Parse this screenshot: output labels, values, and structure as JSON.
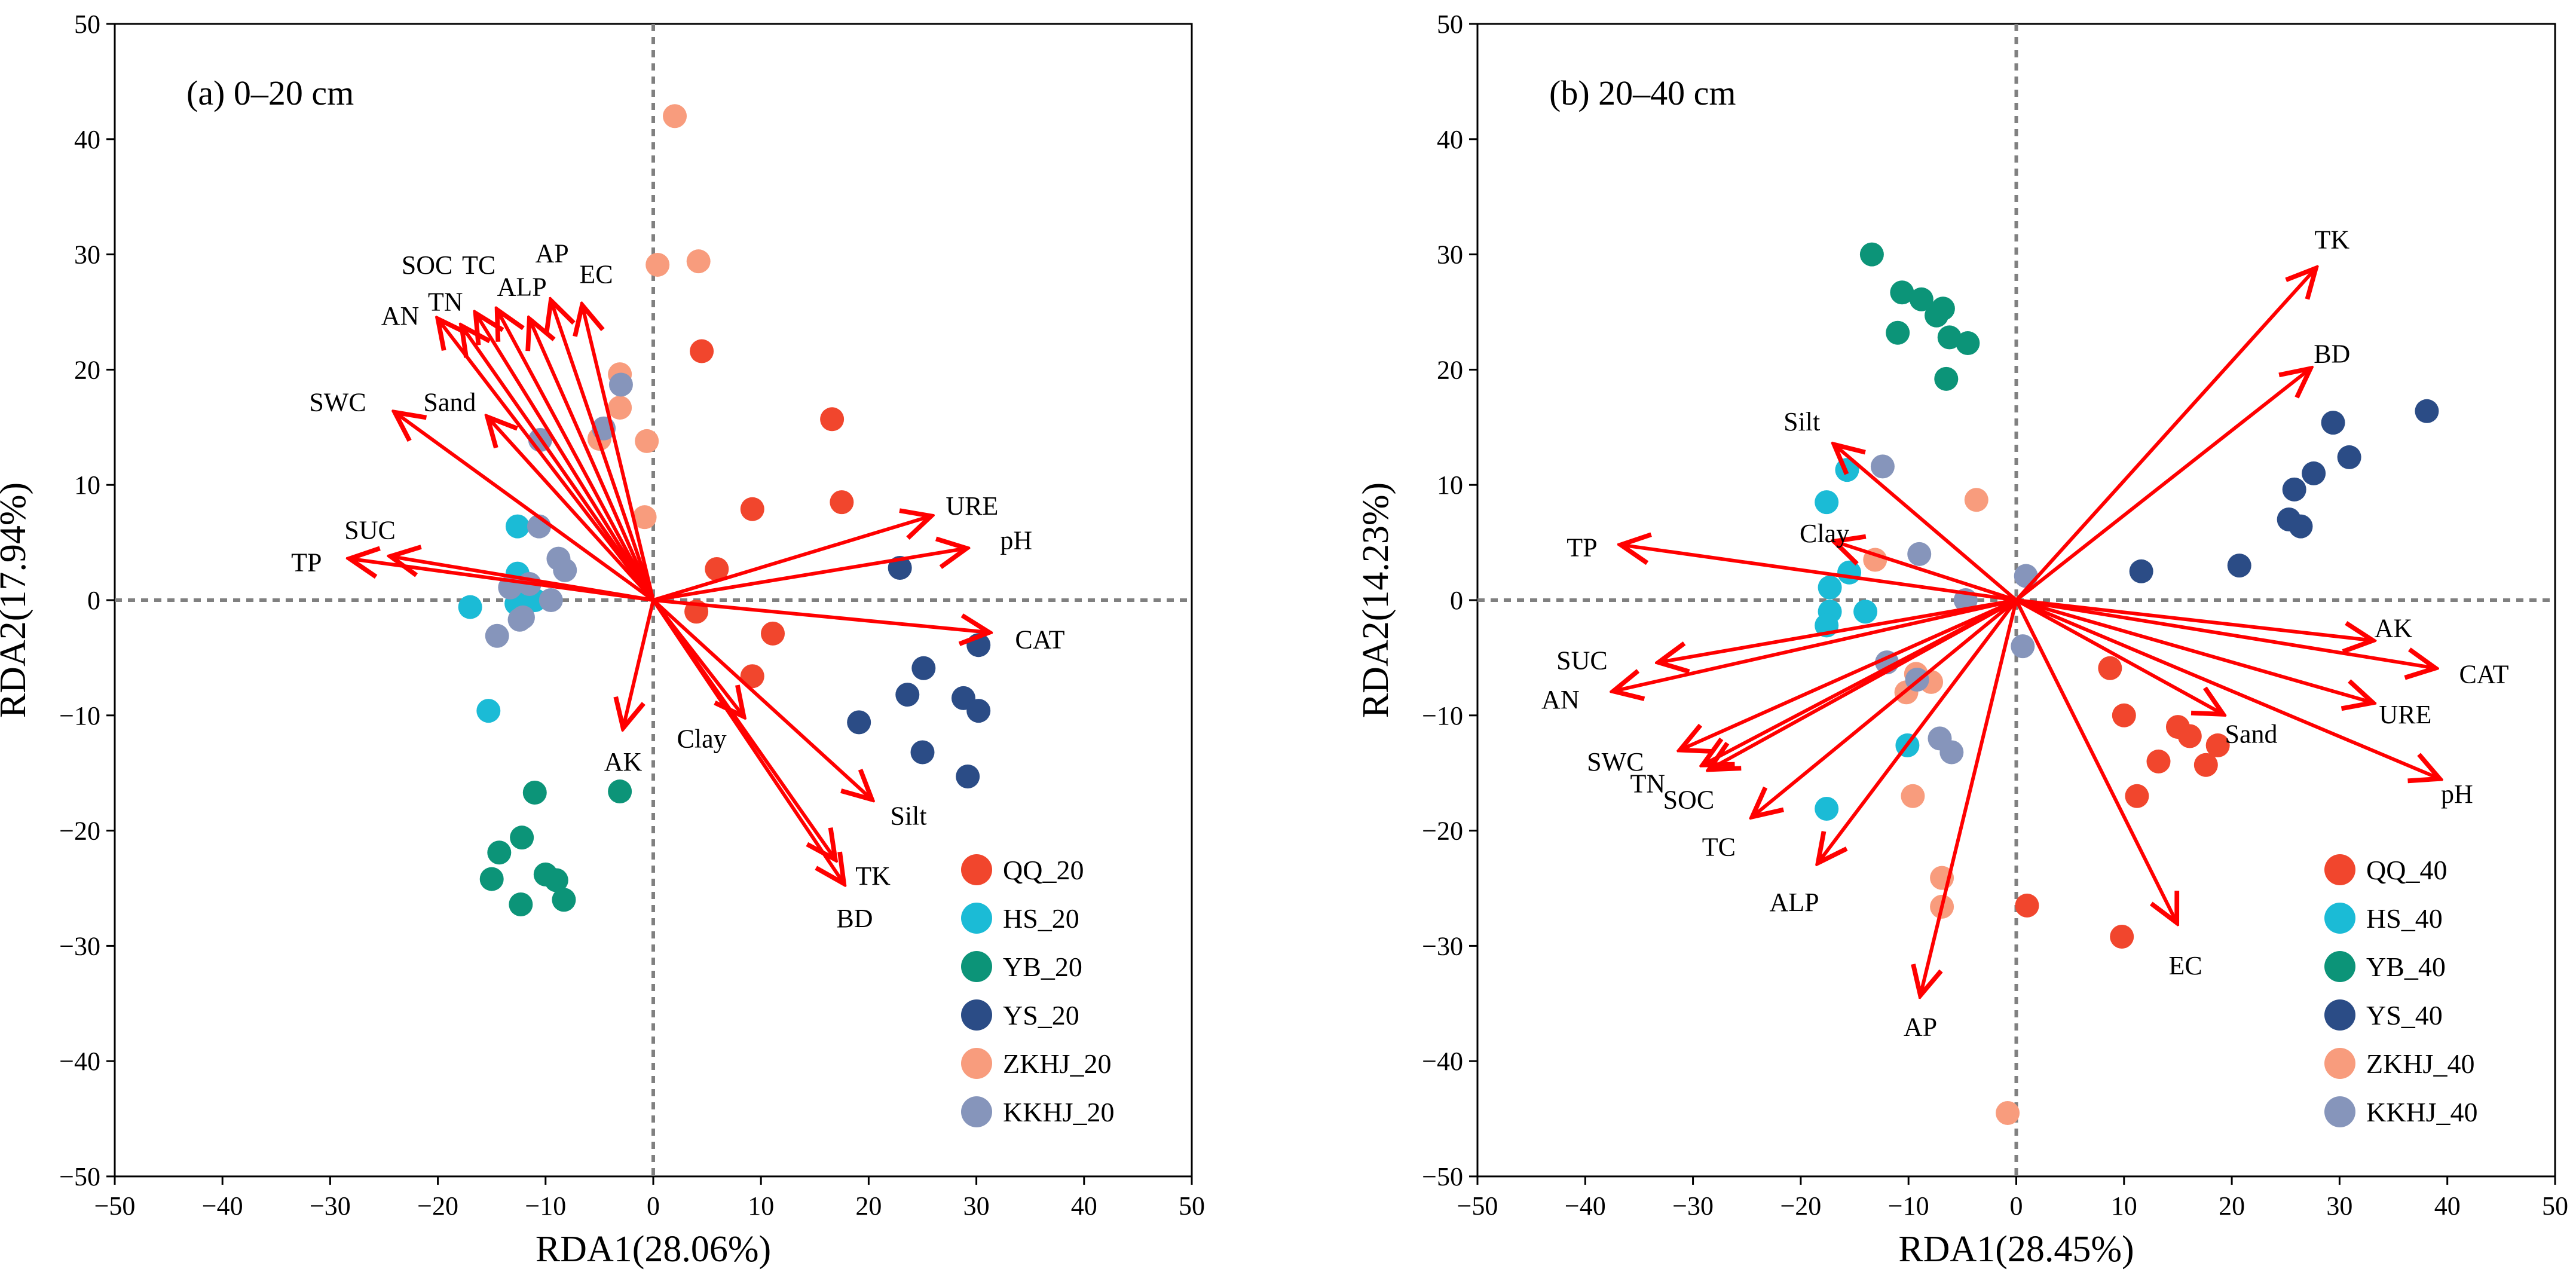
{
  "colors": {
    "QQ": "#f1462d",
    "HS": "#1bbbd6",
    "YB": "#0c9478",
    "YS": "#2b4c86",
    "ZKHJ": "#f89c7d",
    "KKHJ": "#8695bb",
    "vector": "#ff0000",
    "zero_line": "#808080"
  },
  "chart_data": [
    {
      "type": "scatter",
      "panel_label": "(a) 0–20 cm",
      "xlabel": "RDA1(28.06%)",
      "ylabel": "RDA2(17.94%)",
      "xlim": [
        -50,
        50
      ],
      "ylim": [
        -50,
        50
      ],
      "xticks": [
        -50,
        -40,
        -30,
        -20,
        -10,
        0,
        10,
        20,
        30,
        40,
        50
      ],
      "yticks": [
        -50,
        -40,
        -30,
        -20,
        -10,
        0,
        10,
        20,
        30,
        40,
        50
      ],
      "tick_labels": [
        "−50",
        "−40",
        "−30",
        "−20",
        "−10",
        "0",
        "10",
        "20",
        "30",
        "40",
        "50"
      ],
      "legend_position": "bottom-right",
      "series": [
        {
          "name": "QQ_20",
          "color_key": "QQ",
          "points": [
            [
              4.5,
              21.6
            ],
            [
              16.6,
              15.7
            ],
            [
              17.5,
              8.5
            ],
            [
              9.2,
              7.9
            ],
            [
              5.9,
              2.7
            ],
            [
              4.0,
              -1.0
            ],
            [
              11.1,
              -2.9
            ],
            [
              9.2,
              -6.6
            ]
          ]
        },
        {
          "name": "HS_20",
          "color_key": "HS",
          "points": [
            [
              -12.6,
              6.4
            ],
            [
              -12.6,
              2.3
            ],
            [
              -11.0,
              0.0
            ],
            [
              -12.7,
              -0.3
            ],
            [
              -17.0,
              -0.6
            ],
            [
              -15.3,
              -9.6
            ]
          ]
        },
        {
          "name": "YB_20",
          "color_key": "YB",
          "points": [
            [
              -11.0,
              -16.7
            ],
            [
              -3.1,
              -16.6
            ],
            [
              -12.2,
              -20.6
            ],
            [
              -14.3,
              -21.9
            ],
            [
              -10.0,
              -23.8
            ],
            [
              -9.0,
              -24.3
            ],
            [
              -15.0,
              -24.2
            ],
            [
              -12.3,
              -26.4
            ],
            [
              -8.3,
              -26.0
            ]
          ]
        },
        {
          "name": "YS_20",
          "color_key": "YS",
          "points": [
            [
              22.9,
              2.8
            ],
            [
              30.2,
              -3.9
            ],
            [
              25.1,
              -5.9
            ],
            [
              23.6,
              -8.2
            ],
            [
              28.8,
              -8.5
            ],
            [
              30.2,
              -9.6
            ],
            [
              19.1,
              -10.6
            ],
            [
              25.0,
              -13.2
            ],
            [
              29.2,
              -15.3
            ]
          ]
        },
        {
          "name": "ZKHJ_20",
          "color_key": "ZKHJ",
          "points": [
            [
              2.0,
              42.0
            ],
            [
              0.4,
              29.1
            ],
            [
              4.2,
              29.4
            ],
            [
              -3.1,
              19.6
            ],
            [
              -3.1,
              16.7
            ],
            [
              -0.6,
              13.8
            ],
            [
              -5.0,
              14.0
            ],
            [
              -0.8,
              7.2
            ]
          ]
        },
        {
          "name": "KKHJ_20",
          "color_key": "KKHJ",
          "points": [
            [
              -3.0,
              18.7
            ],
            [
              -4.6,
              14.9
            ],
            [
              -10.5,
              13.9
            ],
            [
              -10.6,
              6.4
            ],
            [
              -8.8,
              3.6
            ],
            [
              -8.2,
              2.6
            ],
            [
              -11.5,
              1.4
            ],
            [
              -13.3,
              1.1
            ],
            [
              -12.1,
              -1.5
            ],
            [
              -12.4,
              -1.7
            ],
            [
              -14.5,
              -3.1
            ],
            [
              -9.5,
              0.0
            ]
          ]
        }
      ],
      "vectors": [
        {
          "name": "AN",
          "x": -20.0,
          "y": 24.4
        },
        {
          "name": "TN",
          "x": -17.8,
          "y": 23.8
        },
        {
          "name": "SOC",
          "x": -16.5,
          "y": 24.9
        },
        {
          "name": "TC",
          "x": -14.5,
          "y": 25.2
        },
        {
          "name": "ALP",
          "x": -11.5,
          "y": 24.4
        },
        {
          "name": "AP",
          "x": -9.5,
          "y": 26.0
        },
        {
          "name": "EC",
          "x": -6.6,
          "y": 25.6
        },
        {
          "name": "SWC",
          "x": -24.0,
          "y": 16.3
        },
        {
          "name": "Sand",
          "x": -15.4,
          "y": 15.9
        },
        {
          "name": "SUC",
          "x": -24.4,
          "y": 3.8
        },
        {
          "name": "TP",
          "x": -28.2,
          "y": 3.6
        },
        {
          "name": "URE",
          "x": 25.8,
          "y": 7.3
        },
        {
          "name": "pH",
          "x": 29.1,
          "y": 4.5
        },
        {
          "name": "CAT",
          "x": 31.2,
          "y": -2.8
        },
        {
          "name": "AK",
          "x": -2.8,
          "y": -11.1
        },
        {
          "name": "Clay",
          "x": 8.4,
          "y": -10.1
        },
        {
          "name": "Silt",
          "x": 20.3,
          "y": -17.3
        },
        {
          "name": "TK",
          "x": 16.9,
          "y": -22.5
        },
        {
          "name": "BD",
          "x": 17.7,
          "y": -24.6
        }
      ],
      "vector_labels": [
        {
          "name": "AN",
          "x": -23.5,
          "y": 24.7
        },
        {
          "name": "TN",
          "x": -19.3,
          "y": 25.9
        },
        {
          "name": "SOC",
          "x": -21.0,
          "y": 29.1
        },
        {
          "name": "TC",
          "x": -16.2,
          "y": 29.1
        },
        {
          "name": "ALP",
          "x": -12.2,
          "y": 27.2
        },
        {
          "name": "AP",
          "x": -9.4,
          "y": 30.1
        },
        {
          "name": "EC",
          "x": -5.3,
          "y": 28.3
        },
        {
          "name": "SWC",
          "x": -29.3,
          "y": 17.2
        },
        {
          "name": "Sand",
          "x": -18.9,
          "y": 17.2
        },
        {
          "name": "SUC",
          "x": -26.3,
          "y": 6.1
        },
        {
          "name": "TP",
          "x": -32.2,
          "y": 3.3
        },
        {
          "name": "URE",
          "x": 29.6,
          "y": 8.2
        },
        {
          "name": "pH",
          "x": 33.7,
          "y": 5.2
        },
        {
          "name": "CAT",
          "x": 35.9,
          "y": -3.4
        },
        {
          "name": "AK",
          "x": -2.8,
          "y": -14.0
        },
        {
          "name": "Clay",
          "x": 4.5,
          "y": -12.0
        },
        {
          "name": "Silt",
          "x": 23.7,
          "y": -18.7
        },
        {
          "name": "TK",
          "x": 20.4,
          "y": -23.9
        },
        {
          "name": "BD",
          "x": 18.7,
          "y": -27.6
        }
      ]
    },
    {
      "type": "scatter",
      "panel_label": "(b) 20–40 cm",
      "xlabel": "RDA1(28.45%)",
      "ylabel": "RDA2(14.23%)",
      "xlim": [
        -50,
        50
      ],
      "ylim": [
        -50,
        50
      ],
      "xticks": [
        -50,
        -40,
        -30,
        -20,
        -10,
        0,
        10,
        20,
        30,
        40,
        50
      ],
      "yticks": [
        -50,
        -40,
        -30,
        -20,
        -10,
        0,
        10,
        20,
        30,
        40,
        50
      ],
      "tick_labels": [
        "−50",
        "−40",
        "−30",
        "−20",
        "−10",
        "0",
        "10",
        "20",
        "30",
        "40",
        "50"
      ],
      "legend_position": "bottom-right",
      "series": [
        {
          "name": "QQ_40",
          "color_key": "QQ",
          "points": [
            [
              8.7,
              -5.9
            ],
            [
              10.0,
              -10.0
            ],
            [
              15.0,
              -11.0
            ],
            [
              16.1,
              -11.8
            ],
            [
              18.7,
              -12.6
            ],
            [
              13.2,
              -14.0
            ],
            [
              17.6,
              -14.3
            ],
            [
              11.2,
              -17.0
            ],
            [
              1.0,
              -26.5
            ],
            [
              9.8,
              -29.2
            ]
          ]
        },
        {
          "name": "HS_40",
          "color_key": "HS",
          "points": [
            [
              -17.6,
              8.5
            ],
            [
              -15.7,
              11.3
            ],
            [
              -15.5,
              2.4
            ],
            [
              -17.3,
              1.1
            ],
            [
              -14.0,
              -1.0
            ],
            [
              -17.3,
              -1.0
            ],
            [
              -17.6,
              -2.2
            ],
            [
              -10.1,
              -12.6
            ],
            [
              -17.6,
              -18.1
            ]
          ]
        },
        {
          "name": "YB_40",
          "color_key": "YB",
          "points": [
            [
              -13.4,
              30.0
            ],
            [
              -10.6,
              26.7
            ],
            [
              -8.8,
              26.1
            ],
            [
              -7.4,
              24.7
            ],
            [
              -6.8,
              25.3
            ],
            [
              -11.0,
              23.2
            ],
            [
              -6.2,
              22.8
            ],
            [
              -4.5,
              22.3
            ],
            [
              -6.5,
              19.2
            ]
          ]
        },
        {
          "name": "YS_40",
          "color_key": "YS",
          "points": [
            [
              38.1,
              16.4
            ],
            [
              29.4,
              15.4
            ],
            [
              30.9,
              12.4
            ],
            [
              27.6,
              11.0
            ],
            [
              25.8,
              9.6
            ],
            [
              25.3,
              7.0
            ],
            [
              26.4,
              6.4
            ],
            [
              11.6,
              2.5
            ],
            [
              20.7,
              3.0
            ]
          ]
        },
        {
          "name": "ZKHJ_40",
          "color_key": "ZKHJ",
          "points": [
            [
              -3.7,
              8.7
            ],
            [
              -13.1,
              3.5
            ],
            [
              -9.3,
              -6.4
            ],
            [
              -7.9,
              -7.1
            ],
            [
              -10.2,
              -8.0
            ],
            [
              -9.6,
              -17.0
            ],
            [
              -6.9,
              -24.1
            ],
            [
              -6.9,
              -26.6
            ],
            [
              -0.8,
              -44.5
            ]
          ]
        },
        {
          "name": "KKHJ_40",
          "color_key": "KKHJ",
          "points": [
            [
              -12.4,
              11.6
            ],
            [
              -9.0,
              4.0
            ],
            [
              0.9,
              2.1
            ],
            [
              -4.7,
              0.0
            ],
            [
              0.6,
              -4.0
            ],
            [
              -12.0,
              -5.4
            ],
            [
              -9.2,
              -6.9
            ],
            [
              -7.1,
              -12.0
            ],
            [
              -6.0,
              -13.2
            ]
          ]
        }
      ],
      "vectors": [
        {
          "name": "TK",
          "x": 27.8,
          "y": 28.8
        },
        {
          "name": "BD",
          "x": 27.3,
          "y": 20.1
        },
        {
          "name": "Silt",
          "x": -16.9,
          "y": 13.5
        },
        {
          "name": "Clay",
          "x": -16.9,
          "y": 5.1
        },
        {
          "name": "TP",
          "x": -36.7,
          "y": 4.8
        },
        {
          "name": "SUC",
          "x": -33.2,
          "y": -5.4
        },
        {
          "name": "AN",
          "x": -37.4,
          "y": -7.9
        },
        {
          "name": "SWC",
          "x": -31.2,
          "y": -13.0
        },
        {
          "name": "TN",
          "x": -29.1,
          "y": -14.3
        },
        {
          "name": "SOC",
          "x": -28.5,
          "y": -14.7
        },
        {
          "name": "TC",
          "x": -24.5,
          "y": -18.8
        },
        {
          "name": "ALP",
          "x": -18.4,
          "y": -22.8
        },
        {
          "name": "AP",
          "x": -8.9,
          "y": -34.3
        },
        {
          "name": "EC",
          "x": 14.9,
          "y": -28.0
        },
        {
          "name": "Sand",
          "x": 19.2,
          "y": -9.9
        },
        {
          "name": "AK",
          "x": 33.1,
          "y": -3.5
        },
        {
          "name": "CAT",
          "x": 38.9,
          "y": -5.9
        },
        {
          "name": "URE",
          "x": 33.1,
          "y": -8.9
        },
        {
          "name": "pH",
          "x": 39.3,
          "y": -15.5
        }
      ],
      "vector_labels": [
        {
          "name": "TK",
          "x": 29.3,
          "y": 31.3
        },
        {
          "name": "BD",
          "x": 29.3,
          "y": 21.4
        },
        {
          "name": "Silt",
          "x": -19.9,
          "y": 15.5
        },
        {
          "name": "Clay",
          "x": -17.8,
          "y": 5.8
        },
        {
          "name": "TP",
          "x": -40.3,
          "y": 4.6
        },
        {
          "name": "SUC",
          "x": -40.3,
          "y": -5.2
        },
        {
          "name": "AN",
          "x": -42.3,
          "y": -8.6
        },
        {
          "name": "SWC",
          "x": -37.2,
          "y": -14.0
        },
        {
          "name": "TN",
          "x": -34.2,
          "y": -15.9
        },
        {
          "name": "SOC",
          "x": -30.4,
          "y": -17.3
        },
        {
          "name": "TC",
          "x": -27.6,
          "y": -21.4
        },
        {
          "name": "ALP",
          "x": -20.6,
          "y": -26.2
        },
        {
          "name": "AP",
          "x": -8.9,
          "y": -37.0
        },
        {
          "name": "EC",
          "x": 15.7,
          "y": -31.7
        },
        {
          "name": "Sand",
          "x": 21.8,
          "y": -11.6
        },
        {
          "name": "AK",
          "x": 35.0,
          "y": -2.4
        },
        {
          "name": "CAT",
          "x": 43.4,
          "y": -6.4
        },
        {
          "name": "URE",
          "x": 36.1,
          "y": -9.9
        },
        {
          "name": "pH",
          "x": 40.9,
          "y": -16.8
        }
      ]
    }
  ]
}
